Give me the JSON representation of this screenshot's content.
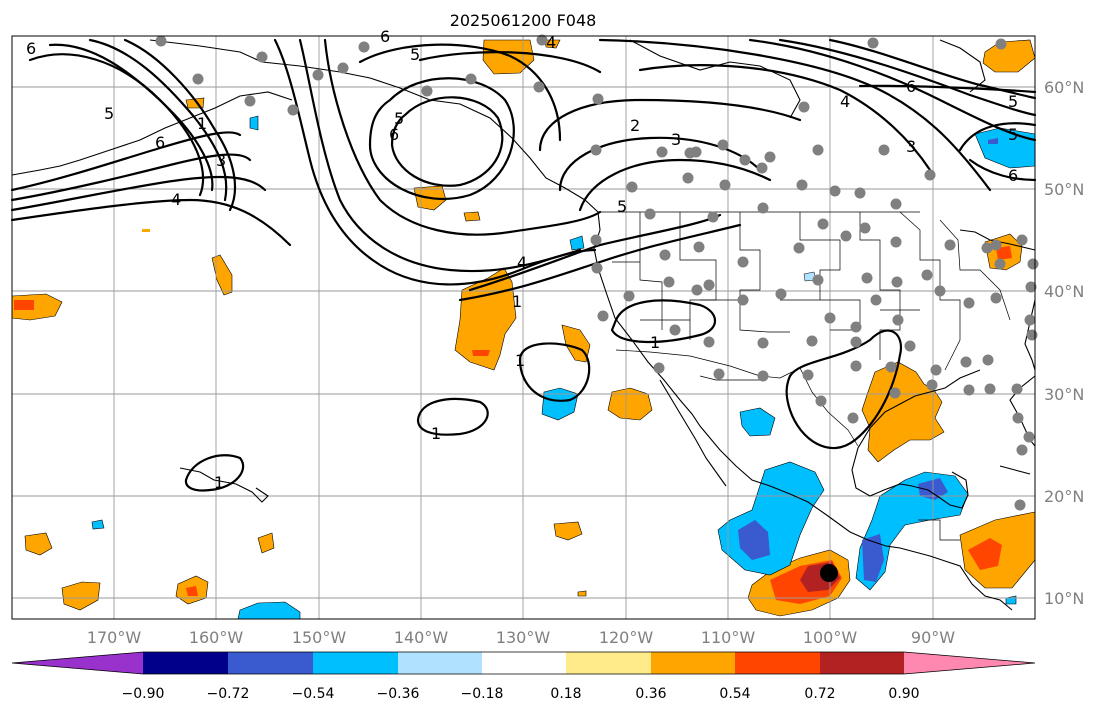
{
  "title": "2025061200 F048",
  "map": {
    "lon_range": [
      -180,
      -80
    ],
    "lat_range": [
      8,
      65
    ],
    "gridlines": true,
    "lon_labels": [
      "170°W",
      "160°W",
      "150°W",
      "140°W",
      "130°W",
      "120°W",
      "110°W",
      "100°W",
      "90°W"
    ],
    "lat_labels": [
      "10°N",
      "20°N",
      "30°N",
      "40°N",
      "50°N",
      "60°N"
    ],
    "contour_labels": [
      "6",
      "5",
      "6",
      "4",
      "3",
      "1",
      "6",
      "5",
      "6",
      "5",
      "4",
      "2",
      "3",
      "5",
      "4",
      "1",
      "1",
      "1",
      "1",
      "1",
      "6",
      "4",
      "5",
      "3",
      "6",
      "5"
    ],
    "marker_color": "#808080",
    "target_marker_color": "#000000"
  },
  "colorbar": {
    "ticks": [
      "−0.90",
      "−0.72",
      "−0.54",
      "−0.36",
      "−0.18",
      "0.18",
      "0.36",
      "0.54",
      "0.72",
      "0.90"
    ],
    "colors": [
      "#9932cc",
      "#00008b",
      "#3a5bd0",
      "#00bfff",
      "#b0e2ff",
      "#ffffff",
      "#ffeb8a",
      "#ffa500",
      "#ff4500",
      "#b22222",
      "#ff88b0"
    ]
  }
}
